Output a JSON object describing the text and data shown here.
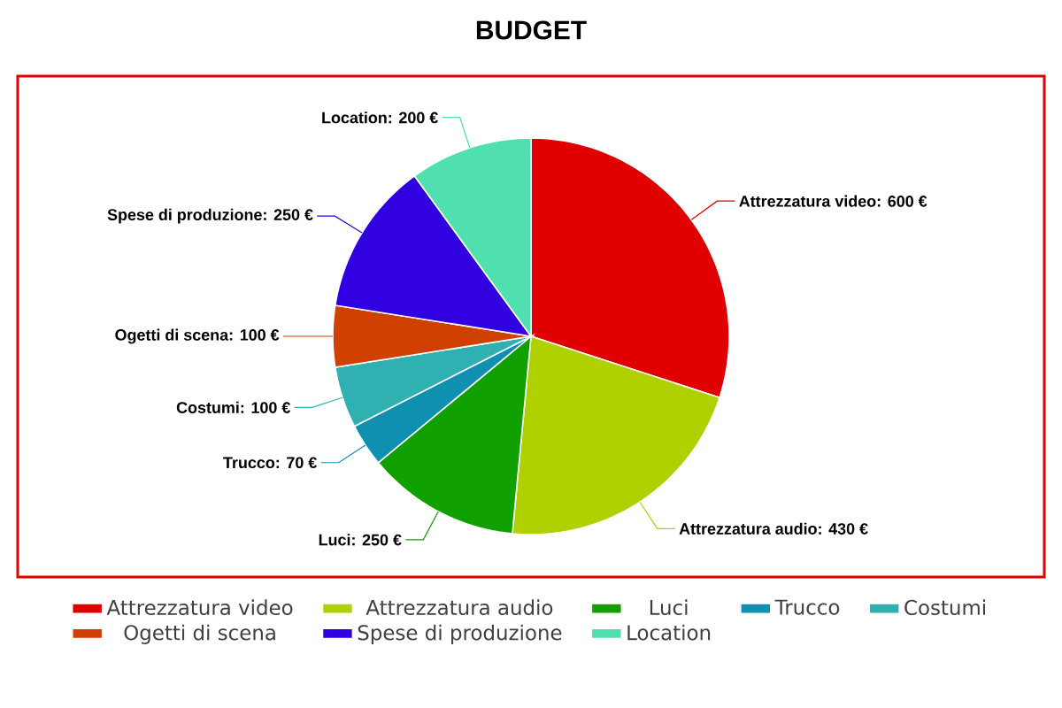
{
  "chart_data": {
    "type": "pie",
    "title": "BUDGET",
    "categories": [
      "Attrezzatura video",
      "Attrezzatura audio",
      "Luci",
      "Trucco",
      "Costumi",
      "Ogetti di scena",
      "Spese di produzione",
      "Location"
    ],
    "values": [
      600,
      430,
      250,
      70,
      100,
      100,
      250,
      200
    ],
    "value_labels": [
      "Attrezzatura video: 600 €",
      "Attrezzatura audio: 430 €",
      "Luci: 250 €",
      "Trucco: 70 €",
      "Costumi: 100 €",
      "Ogetti di scena: 100 €",
      "Spese di produzione: 250 €",
      "Location: 200 €"
    ],
    "colors": [
      "#e00000",
      "#b0d000",
      "#10a000",
      "#1090b0",
      "#30b0b0",
      "#d04000",
      "#3000e0",
      "#50e0b0"
    ],
    "legend": "bottom"
  }
}
